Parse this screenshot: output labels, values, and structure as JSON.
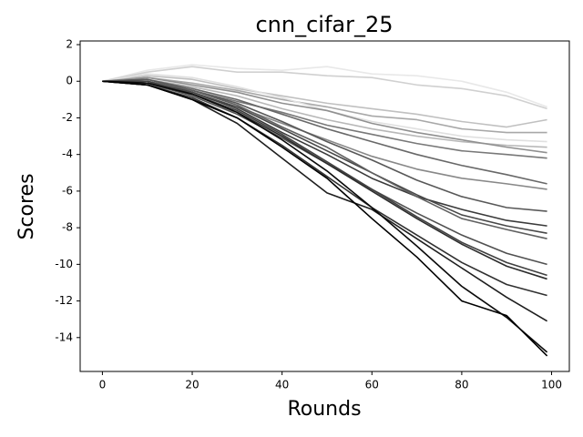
{
  "chart_data": {
    "type": "line",
    "title": "cnn_cifar_25",
    "xlabel": "Rounds",
    "ylabel": "Scores",
    "x": [
      0,
      10,
      20,
      30,
      40,
      50,
      60,
      70,
      80,
      90,
      99
    ],
    "xlim": [
      -4.95,
      103.95
    ],
    "xticks": [
      0,
      20,
      40,
      60,
      80,
      100
    ],
    "ylim": [
      -15.85,
      2.2
    ],
    "yticks": [
      -14,
      -12,
      -10,
      -8,
      -6,
      -4,
      -2,
      0,
      2
    ],
    "series": [
      {
        "color": "#e8e8e8",
        "values": [
          0,
          0.6,
          0.9,
          0.7,
          0.6,
          0.8,
          0.4,
          0.3,
          0.0,
          -0.6,
          -1.4
        ]
      },
      {
        "color": "#d0d0d0",
        "values": [
          0,
          0.5,
          0.8,
          0.5,
          0.5,
          0.3,
          0.2,
          -0.2,
          -0.4,
          -0.8,
          -1.5
        ]
      },
      {
        "color": "#c0c0c0",
        "values": [
          0,
          0.3,
          0.1,
          -0.4,
          -0.8,
          -1.2,
          -1.5,
          -1.8,
          -2.2,
          -2.5,
          -2.1
        ]
      },
      {
        "color": "#a8a8a8",
        "values": [
          0,
          0.2,
          -0.1,
          -0.5,
          -1.0,
          -1.4,
          -1.9,
          -2.1,
          -2.6,
          -2.8,
          -2.8
        ]
      },
      {
        "color": "#e0e0e0",
        "values": [
          0,
          0.4,
          0.2,
          -0.3,
          -0.9,
          -1.6,
          -2.2,
          -2.6,
          -3.0,
          -3.2,
          -3.3
        ]
      },
      {
        "color": "#b8b8b8",
        "values": [
          0,
          0.1,
          -0.3,
          -0.8,
          -1.5,
          -2.1,
          -2.6,
          -3.0,
          -3.3,
          -3.5,
          -3.6
        ]
      },
      {
        "color": "#909090",
        "values": [
          0,
          0.2,
          -0.2,
          -0.6,
          -1.2,
          -1.6,
          -2.3,
          -2.8,
          -3.2,
          -3.6,
          -3.9
        ]
      },
      {
        "color": "#787878",
        "values": [
          0,
          -0.1,
          -0.5,
          -1.1,
          -1.7,
          -2.4,
          -2.9,
          -3.4,
          -3.8,
          -4.0,
          -4.2
        ]
      },
      {
        "color": "#686868",
        "values": [
          0,
          0.1,
          -0.4,
          -1.0,
          -1.8,
          -2.6,
          -3.3,
          -4.0,
          -4.6,
          -5.1,
          -5.6
        ]
      },
      {
        "color": "#888888",
        "values": [
          0,
          -0.2,
          -0.7,
          -1.4,
          -2.3,
          -3.2,
          -4.1,
          -4.8,
          -5.3,
          -5.6,
          -5.9
        ]
      },
      {
        "color": "#585858",
        "values": [
          0,
          0.1,
          -0.5,
          -1.2,
          -2.2,
          -3.3,
          -4.3,
          -5.4,
          -6.3,
          -6.9,
          -7.1
        ]
      },
      {
        "color": "#3a3a3a",
        "values": [
          0,
          0.0,
          -0.6,
          -1.5,
          -2.8,
          -4.0,
          -5.3,
          -6.3,
          -7.0,
          -7.6,
          -7.9
        ]
      },
      {
        "color": "#484848",
        "values": [
          0,
          -0.1,
          -0.6,
          -1.4,
          -2.6,
          -3.8,
          -5.0,
          -6.2,
          -7.3,
          -7.9,
          -8.3
        ]
      },
      {
        "color": "#606060",
        "values": [
          0,
          0.0,
          -0.5,
          -1.3,
          -2.5,
          -3.6,
          -5.0,
          -6.3,
          -7.5,
          -8.1,
          -8.6
        ]
      },
      {
        "color": "#505050",
        "values": [
          0,
          -0.1,
          -0.8,
          -1.8,
          -3.1,
          -4.5,
          -5.9,
          -7.2,
          -8.4,
          -9.4,
          -10.0
        ]
      },
      {
        "color": "#404040",
        "values": [
          0,
          0.0,
          -0.7,
          -1.6,
          -2.9,
          -4.4,
          -5.9,
          -7.4,
          -8.8,
          -9.9,
          -10.6
        ]
      },
      {
        "color": "#2c2c2c",
        "values": [
          0,
          -0.1,
          -0.7,
          -1.7,
          -3.0,
          -4.5,
          -6.0,
          -7.5,
          -8.9,
          -10.1,
          -10.8
        ]
      },
      {
        "color": "#303030",
        "values": [
          0,
          -0.2,
          -0.9,
          -2.0,
          -3.5,
          -5.2,
          -6.9,
          -8.4,
          -9.9,
          -11.1,
          -11.7
        ]
      },
      {
        "color": "#1e1e1e",
        "values": [
          0,
          -0.2,
          -1.0,
          -2.3,
          -4.2,
          -6.1,
          -7.0,
          -8.6,
          -10.2,
          -11.8,
          -13.1
        ]
      },
      {
        "color": "#0a0a0a",
        "values": [
          0,
          -0.1,
          -0.7,
          -1.7,
          -3.2,
          -4.9,
          -6.9,
          -9.0,
          -11.2,
          -12.9,
          -14.8
        ]
      },
      {
        "color": "#000000",
        "values": [
          0,
          -0.2,
          -1.0,
          -2.0,
          -3.6,
          -5.3,
          -7.5,
          -9.6,
          -12.0,
          -12.8,
          -15.0
        ]
      }
    ]
  }
}
